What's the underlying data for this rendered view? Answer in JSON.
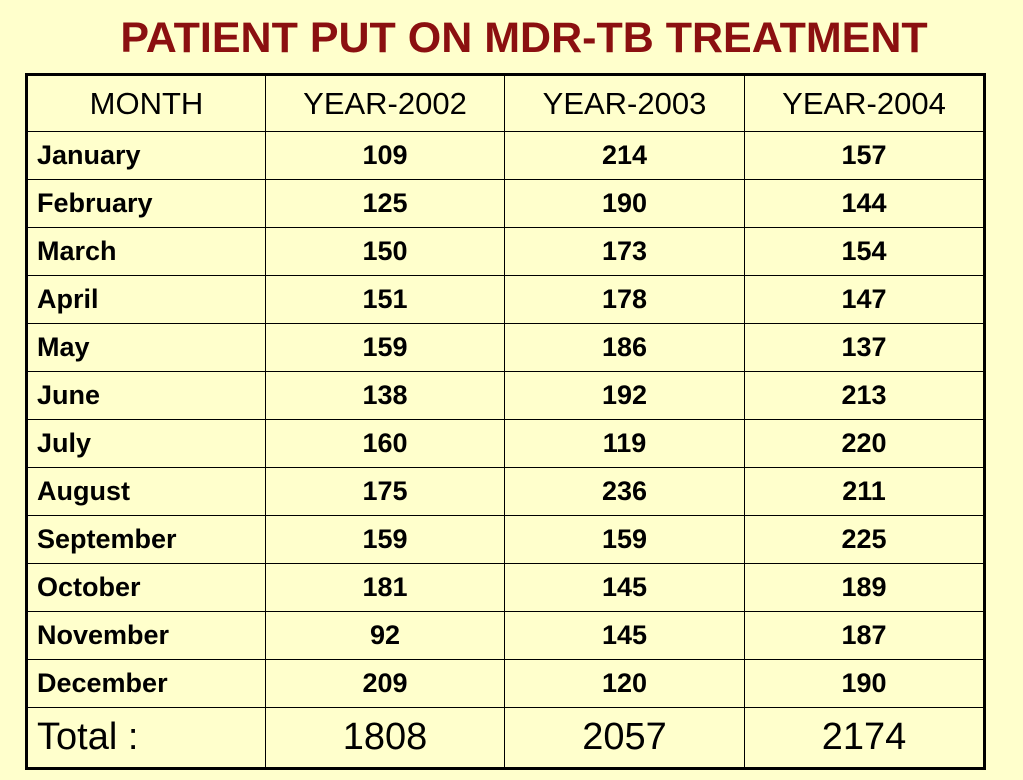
{
  "title": "PATIENT PUT ON MDR-TB TREATMENT",
  "table": {
    "headers": [
      "MONTH",
      "YEAR-2002",
      "YEAR-2003",
      "YEAR-2004"
    ],
    "rows": [
      [
        "January",
        "109",
        "214",
        "157"
      ],
      [
        "February",
        "125",
        "190",
        "144"
      ],
      [
        "March",
        "150",
        "173",
        "154"
      ],
      [
        "April",
        "151",
        "178",
        "147"
      ],
      [
        "May",
        "159",
        "186",
        "137"
      ],
      [
        "June",
        "138",
        "192",
        "213"
      ],
      [
        "July",
        "160",
        "119",
        "220"
      ],
      [
        "August",
        "175",
        "236",
        "211"
      ],
      [
        "September",
        "159",
        "159",
        "225"
      ],
      [
        "October",
        "181",
        "145",
        "189"
      ],
      [
        "November",
        "92",
        "145",
        "187"
      ],
      [
        "December",
        "209",
        "120",
        "190"
      ]
    ],
    "total": [
      "Total :",
      "1808",
      "2057",
      "2174"
    ]
  },
  "colors": {
    "background": "#ffffcc",
    "title": "#8b1010",
    "text": "#000000"
  }
}
